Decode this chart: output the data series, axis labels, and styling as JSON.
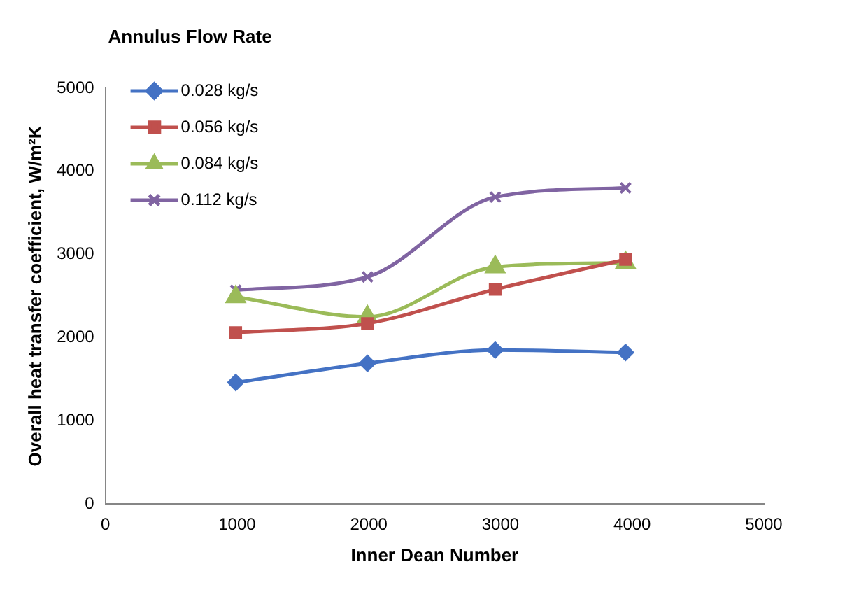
{
  "chart_data": {
    "type": "line",
    "xlabel": "Inner Dean Number",
    "ylabel": "Overall heat transfer coefficient, W/m²K",
    "legend_title": "Annulus Flow Rate",
    "legend": "top left",
    "grid": false,
    "xlim": [
      0,
      5000
    ],
    "xticks": [
      0,
      1000,
      2000,
      3000,
      4000,
      5000
    ],
    "ylim": [
      0,
      5000
    ],
    "yticks": [
      0,
      1000,
      2000,
      3000,
      4000,
      5000
    ],
    "x": [
      990,
      1990,
      2960,
      3950
    ],
    "series": [
      {
        "name": "0.028 kg/s",
        "color": "#4472c4",
        "marker": "diamond",
        "values": [
          1460,
          1690,
          1850,
          1820
        ]
      },
      {
        "name": "0.056 kg/s",
        "color": "#c0504d",
        "marker": "square",
        "values": [
          2060,
          2170,
          2580,
          2940
        ]
      },
      {
        "name": "0.084 kg/s",
        "color": "#9bbb59",
        "marker": "triangle",
        "values": [
          2490,
          2250,
          2850,
          2900
        ]
      },
      {
        "name": "0.112 kg/s",
        "color": "#8064a2",
        "marker": "cross",
        "values": [
          2570,
          2730,
          3690,
          3800
        ]
      }
    ]
  }
}
